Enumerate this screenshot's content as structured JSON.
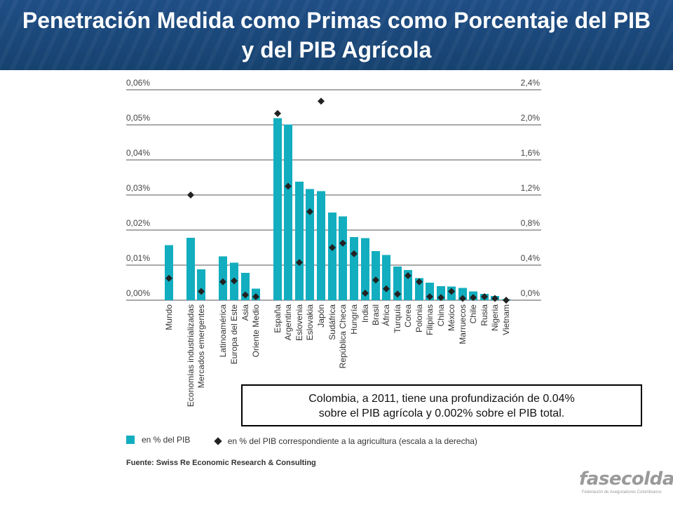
{
  "title": "Penetración Medida como Primas como Porcentaje del PIB y del PIB Agrícola",
  "note": {
    "line1": "Colombia, a 2011, tiene una profundización de 0.04%",
    "line2": "sobre el PIB agrícola y 0.002% sobre el PIB total."
  },
  "legend": {
    "bars": "en % del PIB",
    "diamonds": "en % del PIB correspondiente a la agricultura (escala a la derecha)"
  },
  "source": "Fuente: Swiss Re Economic Research & Consulting",
  "logo": {
    "brand": "fasecolda",
    "tagline": "Federación de Aseguradores Colombianos"
  },
  "colors": {
    "bar": "#12aebf",
    "diamond": "#222222",
    "header": "#1f4e86"
  },
  "chart_data": {
    "type": "bar",
    "left_ticks": [
      "0,00%",
      "0,01%",
      "0,02%",
      "0,03%",
      "0,04%",
      "0,05%",
      "0,06%"
    ],
    "right_ticks": [
      "0,0%",
      "0,4%",
      "0,8%",
      "1,2%",
      "1,6%",
      "2,0%",
      "2,4%"
    ],
    "ylim_left": [
      0,
      0.06
    ],
    "ylim_right": [
      0,
      2.4
    ],
    "grid": true,
    "categories": [
      "Mundo",
      "Economías industrializadas",
      "Mercados emergentes",
      "Latinoamérica",
      "Europa del Este",
      "Asia",
      "Oriente Medio",
      "España",
      "Argentina",
      "Eslovenia",
      "Eslovakia",
      "Japón",
      "Sudáfrica",
      "República Checa",
      "Hungría",
      "India",
      "Brasil",
      "África",
      "Turquía",
      "Corea",
      "Polonia",
      "Filipinas",
      "China",
      "México",
      "Marruecos",
      "Chile",
      "Rusia",
      "Nigeria",
      "Vietnam"
    ],
    "series": [
      {
        "name": "en % del PIB",
        "axis": "left",
        "values": [
          0.0157,
          0.0178,
          0.0088,
          0.0125,
          0.0107,
          0.0078,
          0.0033,
          0.0519,
          0.0501,
          0.0338,
          0.0317,
          0.0311,
          0.025,
          0.0239,
          0.018,
          0.0177,
          0.014,
          0.0129,
          0.0096,
          0.0086,
          0.0063,
          0.005,
          0.004,
          0.0039,
          0.0035,
          0.0025,
          0.0018,
          0.0012,
          0.0003
        ]
      },
      {
        "name": "en % del PIB correspondiente a la agricultura (escala a la derecha)",
        "axis": "right",
        "values": [
          0.25,
          1.2,
          0.1,
          0.21,
          0.22,
          0.06,
          0.04,
          2.13,
          1.3,
          0.43,
          1.01,
          2.27,
          0.6,
          0.65,
          0.53,
          0.08,
          0.23,
          0.13,
          0.07,
          0.28,
          0.21,
          0.04,
          0.03,
          0.1,
          0.02,
          0.03,
          0.04,
          0.02,
          0.0
        ]
      }
    ]
  }
}
